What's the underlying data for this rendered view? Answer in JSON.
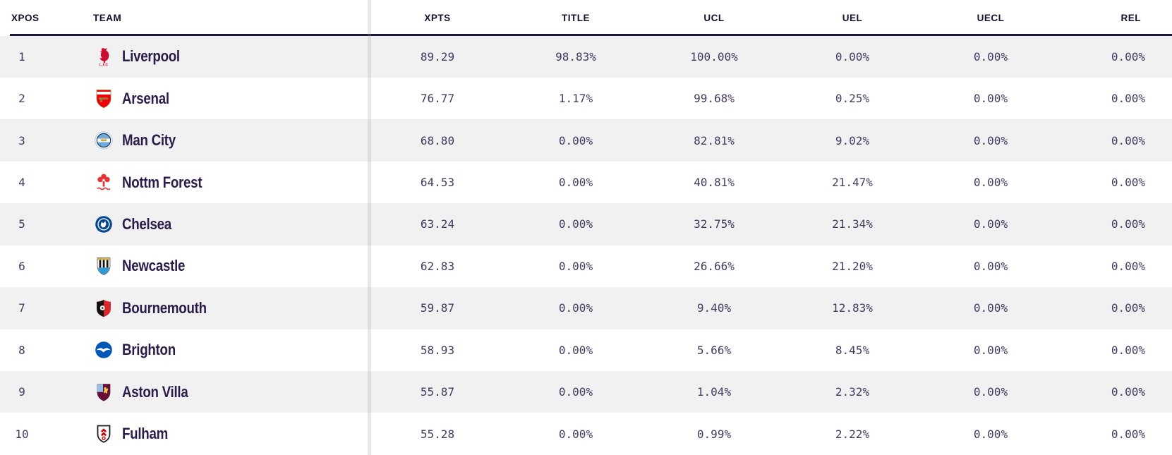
{
  "table": {
    "columns": [
      {
        "key": "xpos",
        "label": "XPOS"
      },
      {
        "key": "team",
        "label": "TEAM"
      },
      {
        "key": "xpts",
        "label": "XPTS"
      },
      {
        "key": "title",
        "label": "TITLE"
      },
      {
        "key": "ucl",
        "label": "UCL"
      },
      {
        "key": "uel",
        "label": "UEL"
      },
      {
        "key": "uecl",
        "label": "UECL"
      },
      {
        "key": "rel",
        "label": "REL"
      }
    ],
    "rows": [
      {
        "xpos": "1",
        "team": "Liverpool",
        "slug": "liverpool",
        "xpts": "89.29",
        "title": "98.83%",
        "ucl": "100.00%",
        "uel": "0.00%",
        "uecl": "0.00%",
        "rel": "0.00%"
      },
      {
        "xpos": "2",
        "team": "Arsenal",
        "slug": "arsenal",
        "xpts": "76.77",
        "title": "1.17%",
        "ucl": "99.68%",
        "uel": "0.25%",
        "uecl": "0.00%",
        "rel": "0.00%"
      },
      {
        "xpos": "3",
        "team": "Man City",
        "slug": "man-city",
        "xpts": "68.80",
        "title": "0.00%",
        "ucl": "82.81%",
        "uel": "9.02%",
        "uecl": "0.00%",
        "rel": "0.00%"
      },
      {
        "xpos": "4",
        "team": "Nottm Forest",
        "slug": "nottm-forest",
        "xpts": "64.53",
        "title": "0.00%",
        "ucl": "40.81%",
        "uel": "21.47%",
        "uecl": "0.00%",
        "rel": "0.00%"
      },
      {
        "xpos": "5",
        "team": "Chelsea",
        "slug": "chelsea",
        "xpts": "63.24",
        "title": "0.00%",
        "ucl": "32.75%",
        "uel": "21.34%",
        "uecl": "0.00%",
        "rel": "0.00%"
      },
      {
        "xpos": "6",
        "team": "Newcastle",
        "slug": "newcastle",
        "xpts": "62.83",
        "title": "0.00%",
        "ucl": "26.66%",
        "uel": "21.20%",
        "uecl": "0.00%",
        "rel": "0.00%"
      },
      {
        "xpos": "7",
        "team": "Bournemouth",
        "slug": "bournemouth",
        "xpts": "59.87",
        "title": "0.00%",
        "ucl": "9.40%",
        "uel": "12.83%",
        "uecl": "0.00%",
        "rel": "0.00%"
      },
      {
        "xpos": "8",
        "team": "Brighton",
        "slug": "brighton",
        "xpts": "58.93",
        "title": "0.00%",
        "ucl": "5.66%",
        "uel": "8.45%",
        "uecl": "0.00%",
        "rel": "0.00%"
      },
      {
        "xpos": "9",
        "team": "Aston Villa",
        "slug": "aston-villa",
        "xpts": "55.87",
        "title": "0.00%",
        "ucl": "1.04%",
        "uel": "2.32%",
        "uecl": "0.00%",
        "rel": "0.00%"
      },
      {
        "xpos": "10",
        "team": "Fulham",
        "slug": "fulham",
        "xpts": "55.28",
        "title": "0.00%",
        "ucl": "0.99%",
        "uel": "2.22%",
        "uecl": "0.00%",
        "rel": "0.00%"
      }
    ],
    "style": {
      "stripe_color": "#f1f1f2",
      "header_underline_color": "#1d1737",
      "divider_color": "#e9e9ec",
      "value_text_color": "#443a60",
      "team_text_color": "#2b1c49",
      "header_text_color": "#14102c"
    }
  },
  "crests": {
    "liverpool": {
      "icon": "liverpool-crest-icon",
      "caption": "L.F.C",
      "colors": [
        "#c8102e"
      ]
    },
    "arsenal": {
      "icon": "arsenal-crest-icon",
      "colors": [
        "#ef0107",
        "#9c824a",
        "#fdfdfd"
      ]
    },
    "man-city": {
      "icon": "man-city-crest-icon",
      "colors": [
        "#6cabdd",
        "#1c2c5b",
        "#d4a43c",
        "#ffffff"
      ]
    },
    "nottm-forest": {
      "icon": "nottm-forest-crest-icon",
      "colors": [
        "#e43235"
      ]
    },
    "chelsea": {
      "icon": "chelsea-crest-icon",
      "colors": [
        "#034694",
        "#ffffff"
      ]
    },
    "newcastle": {
      "icon": "newcastle-crest-icon",
      "colors": [
        "#17120f",
        "#ffffff",
        "#2f9bd6",
        "#d6b24c"
      ]
    },
    "bournemouth": {
      "icon": "bournemouth-crest-icon",
      "colors": [
        "#17120f",
        "#d8272c",
        "#ffffff"
      ]
    },
    "brighton": {
      "icon": "brighton-crest-icon",
      "colors": [
        "#0057b8",
        "#ffffff"
      ]
    },
    "aston-villa": {
      "icon": "aston-villa-crest-icon",
      "colors": [
        "#670e36",
        "#95bfe5",
        "#f2c14e"
      ]
    },
    "fulham": {
      "icon": "fulham-crest-icon",
      "colors": [
        "#fbfbfb",
        "#1a1a1a",
        "#c70101"
      ]
    }
  }
}
